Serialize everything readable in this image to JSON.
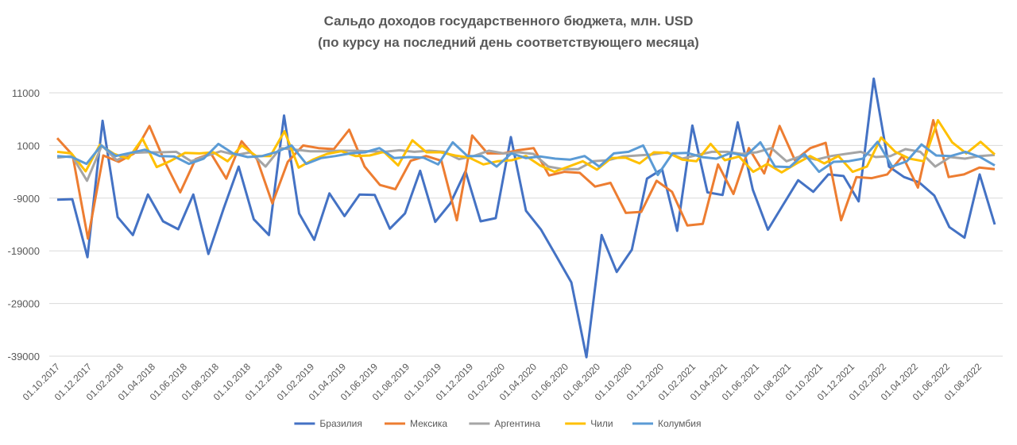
{
  "chart_data": {
    "type": "line",
    "title_line1": "Сальдо доходов государственного бюджета, млн. USD",
    "title_line2": "(по курсу на последний день соответствующего месяца)",
    "xlabel": "",
    "ylabel": "",
    "ylim": [
      -39000,
      11000
    ],
    "y_ticks": [
      11000,
      1000,
      -9000,
      -19000,
      -29000,
      -39000
    ],
    "y_tick_labels": [
      "11000",
      "1000",
      "-9000",
      "-19000",
      "-29000",
      "-39000"
    ],
    "grid": true,
    "legend_position": "bottom",
    "x_tick_labels": [
      "01.10.2017",
      "01.12.2017",
      "01.02.2018",
      "01.04.2018",
      "01.06.2018",
      "01.08.2018",
      "01.10.2018",
      "01.12.2018",
      "01.02.2019",
      "01.04.2019",
      "01.06.2019",
      "01.08.2019",
      "01.10.2019",
      "01.12.2019",
      "01.02.2020",
      "01.04.2020",
      "01.06.2020",
      "01.08.2020",
      "01.10.2020",
      "01.12.2020",
      "01.02.2021",
      "01.04.2021",
      "01.06.2021",
      "01.08.2021",
      "01.10.2021",
      "01.12.2021",
      "01.02.2022",
      "01.04.2022",
      "01.06.2022",
      "01.08.2022"
    ],
    "x_tick_every": 2,
    "series": [
      {
        "name": "Бразилия",
        "color": "#4472C4",
        "values": [
          -9300,
          -9200,
          -20200,
          5700,
          -12600,
          -16000,
          -8300,
          -13400,
          -14900,
          -8300,
          -19600,
          -11000,
          -3000,
          -13000,
          -16000,
          6700,
          -11900,
          -16900,
          -8100,
          -12400,
          -8300,
          -8400,
          -14800,
          -11900,
          -3800,
          -13500,
          -10000,
          -3900,
          -13400,
          -12800,
          2600,
          -11400,
          -15000,
          -20000,
          -25000,
          -39200,
          -16000,
          -23000,
          -18800,
          -5300,
          -3500,
          -15200,
          4800,
          -7900,
          -8400,
          5400,
          -7400,
          -15000,
          -10300,
          -5600,
          -7800,
          -4500,
          -4800,
          -9600,
          13700,
          -3000,
          -5000,
          -6000,
          -8500,
          -14500,
          -16500,
          -4500,
          -14000
        ],
        "x_index": [
          0,
          1,
          2,
          3,
          4,
          5,
          6,
          7,
          8,
          9,
          10,
          11,
          12,
          13,
          14,
          15,
          16,
          17,
          18,
          19,
          20,
          21,
          22,
          23,
          24,
          25,
          26,
          27,
          28,
          29,
          30,
          31,
          32,
          33,
          34,
          35,
          36,
          37,
          38,
          39,
          40,
          41,
          42,
          43,
          44,
          45,
          46,
          47,
          48,
          49,
          50,
          51,
          52,
          53,
          54,
          55,
          56,
          57,
          58,
          59,
          60,
          61,
          62
        ]
      },
      {
        "name": "Мексика",
        "color": "#ED7D31",
        "values": [
          2400,
          -800,
          -16700,
          -900,
          -2100,
          -500,
          4700,
          -2100,
          -7900,
          -1600,
          -500,
          -5300,
          1800,
          -1600,
          -10000,
          -2100,
          1000,
          500,
          300,
          4000,
          -3000,
          -6500,
          -7300,
          -1900,
          -1000,
          -1900,
          -13200,
          2900,
          -500,
          -500,
          100,
          500,
          -4700,
          -4000,
          -4200,
          -6800,
          -6100,
          -11800,
          -11600,
          -5700,
          -7800,
          -14200,
          -13900,
          -2600,
          -8200,
          500,
          -4300,
          4700,
          -1800,
          500,
          1500,
          -13200,
          -5000,
          -5200,
          -4500,
          -1000,
          -7000,
          5800,
          -5000,
          -4500,
          -3200,
          -3500
        ],
        "x_index": [
          0,
          1,
          2,
          3,
          4,
          5,
          6,
          7,
          8,
          9,
          10,
          11,
          12,
          13,
          14,
          15,
          16,
          17,
          18,
          19,
          20,
          21,
          22,
          23,
          24,
          25,
          26,
          27,
          28,
          29,
          30,
          31,
          32,
          33,
          34,
          35,
          36,
          37,
          38,
          39,
          40,
          41,
          42,
          43,
          44,
          45,
          46,
          47,
          48,
          49,
          50,
          51,
          52,
          53,
          54,
          55,
          56,
          57,
          58,
          59,
          61,
          62
        ]
      },
      {
        "name": "Аргентина",
        "color": "#A5A5A5",
        "values": [
          -1300,
          -1000,
          -5700,
          1000,
          -1800,
          -400,
          -300,
          -300,
          -200,
          -2000,
          -1000,
          -100,
          -800,
          -300,
          -3000,
          500,
          200,
          -100,
          -100,
          0,
          0,
          -100,
          -200,
          100,
          -200,
          0,
          -200,
          -1600,
          -1000,
          0,
          -500,
          -300,
          -600,
          -3000,
          -3500,
          -3500,
          -2000,
          -1800,
          -1100,
          -900,
          -700,
          -300,
          -1500,
          -800,
          -200,
          -200,
          -600,
          -300,
          500,
          -2000,
          -1000,
          -1700,
          -1000,
          -600,
          -200,
          -1200,
          -1000,
          300,
          -200,
          -3000,
          -1200,
          -1500,
          -1000,
          -800
        ],
        "x_index": [
          0,
          1,
          2,
          3,
          4,
          5,
          6,
          7,
          8,
          9,
          10,
          11,
          12,
          13,
          14,
          15,
          16,
          17,
          18,
          19,
          20,
          21,
          22,
          23,
          24,
          25,
          26,
          27,
          28,
          29,
          30,
          31,
          32,
          33,
          34,
          35,
          36,
          37,
          38,
          39,
          40,
          41,
          42,
          43,
          44,
          45,
          46,
          47,
          48,
          49,
          50,
          51,
          52,
          53,
          54,
          55,
          56,
          57,
          58,
          59,
          60,
          61,
          62,
          63
        ]
      },
      {
        "name": "Чили",
        "color": "#FFC000",
        "values": [
          -200,
          -500,
          -3900,
          1100,
          -600,
          -1500,
          2300,
          -3100,
          -1900,
          -400,
          -500,
          -300,
          -2000,
          1000,
          -1000,
          -1000,
          3700,
          -3200,
          -1700,
          -600,
          -100,
          -1000,
          -900,
          -200,
          -2800,
          2000,
          -300,
          -300,
          -900,
          -1300,
          -2600,
          -2000,
          -1800,
          -1000,
          -2800,
          -4000,
          -3000,
          -2000,
          -3600,
          -1400,
          -1300,
          -2400,
          -300,
          -400,
          -1700,
          -2000,
          1300,
          -1800,
          -1100,
          -4000,
          -2500,
          -4100,
          -2500,
          -1000,
          -2400,
          -1000,
          -4000,
          -3000,
          2500,
          -200,
          -1500,
          -2000,
          5800,
          1600,
          -500,
          1700,
          -700
        ],
        "x_index": [
          0,
          1,
          2,
          3,
          4,
          5,
          6,
          7,
          8,
          9,
          10,
          11,
          12,
          13,
          14,
          15,
          16,
          17,
          18,
          19,
          20,
          21,
          22,
          23,
          24,
          25,
          26,
          27,
          28,
          29,
          30,
          31,
          32,
          33,
          34,
          35,
          36,
          37,
          38,
          39,
          40,
          41,
          42,
          43,
          44,
          45,
          46,
          47,
          48,
          49,
          50,
          51,
          52,
          53,
          54,
          55,
          56,
          57,
          58,
          59,
          60,
          61,
          62,
          63,
          64,
          65,
          66
        ]
      },
      {
        "name": "Колумбия",
        "color": "#5B9BD5",
        "values": [
          -1000,
          -1200,
          -2500,
          1000,
          -1000,
          -400,
          200,
          -1000,
          -1100,
          -2500,
          -1500,
          1300,
          -500,
          -1200,
          -1000,
          -200,
          1000,
          -2500,
          -1400,
          -1000,
          -500,
          -300,
          500,
          -1400,
          -1200,
          -1300,
          -2600,
          1600,
          -1000,
          -1000,
          -3000,
          -500,
          -1400,
          -1100,
          -1500,
          -1700,
          -1000,
          -3000,
          -500,
          -200,
          1000,
          -4600,
          -500,
          -400,
          -1200,
          -1500,
          -400,
          -1000,
          1600,
          -3000,
          -3100,
          -600,
          -4000,
          -2100,
          -2000,
          -1500,
          1700,
          -3000,
          -2000,
          1200,
          -900,
          -1000,
          -200,
          -1200,
          -2800
        ],
        "x_index": [
          0,
          1,
          2,
          3,
          4,
          5,
          6,
          7,
          8,
          9,
          10,
          11,
          12,
          13,
          14,
          15,
          16,
          17,
          18,
          19,
          20,
          21,
          22,
          23,
          24,
          25,
          26,
          27,
          28,
          29,
          30,
          31,
          32,
          33,
          34,
          35,
          36,
          37,
          38,
          39,
          40,
          41,
          42,
          43,
          44,
          45,
          46,
          47,
          48,
          49,
          50,
          51,
          52,
          53,
          54,
          55,
          56,
          57,
          58,
          59,
          60,
          61,
          62,
          63,
          64
        ]
      }
    ]
  }
}
